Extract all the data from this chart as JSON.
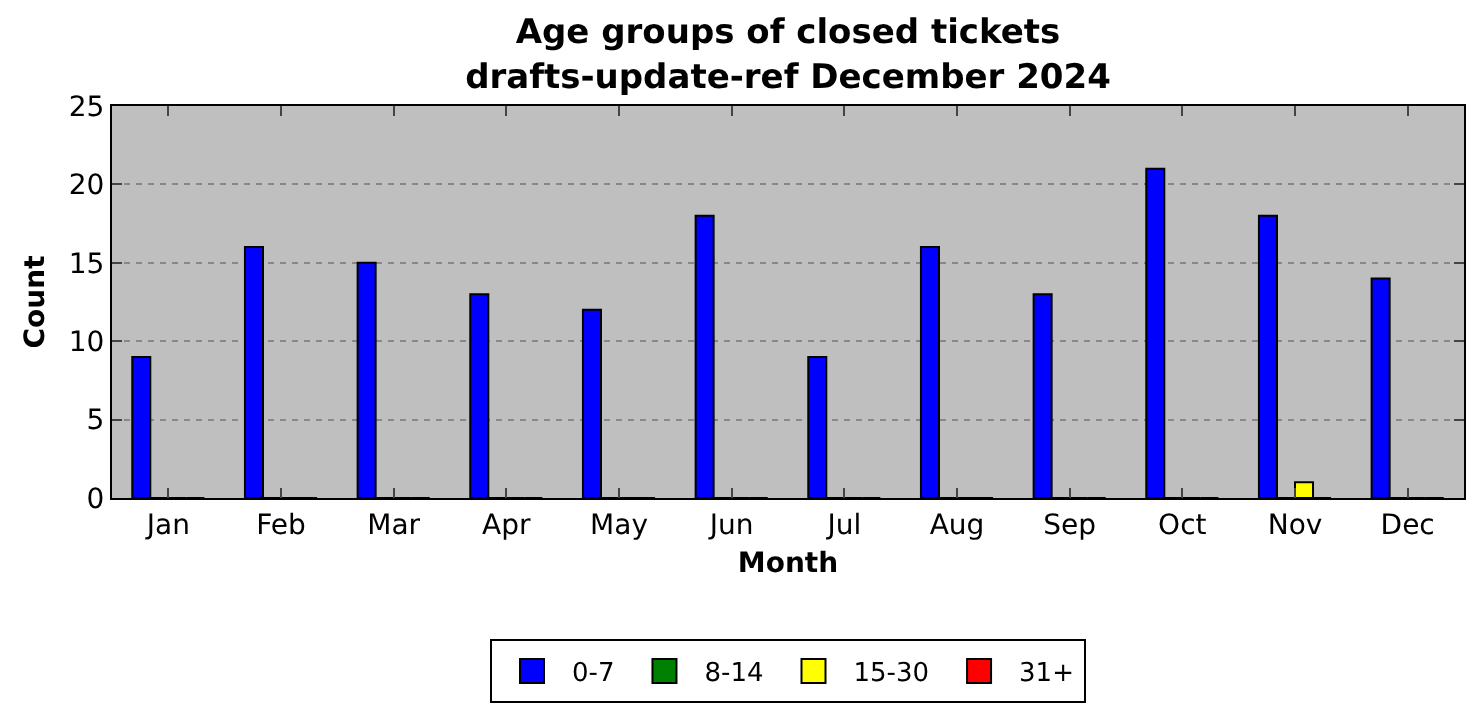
{
  "chart_data": {
    "type": "bar",
    "title": "Age groups of closed tickets\ndrafts-update-ref December 2024",
    "xlabel": "Month",
    "ylabel": "Count",
    "categories": [
      "Jan",
      "Feb",
      "Mar",
      "Apr",
      "May",
      "Jun",
      "Jul",
      "Aug",
      "Sep",
      "Oct",
      "Nov",
      "Dec"
    ],
    "series": [
      {
        "name": "0-7",
        "color": "#0000ff",
        "values": [
          9,
          16,
          15,
          13,
          12,
          18,
          9,
          16,
          13,
          21,
          18,
          14
        ]
      },
      {
        "name": "8-14",
        "color": "#008000",
        "values": [
          0,
          0,
          0,
          0,
          0,
          0,
          0,
          0,
          0,
          0,
          0,
          0
        ]
      },
      {
        "name": "15-30",
        "color": "#ffff00",
        "values": [
          0,
          0,
          0,
          0,
          0,
          0,
          0,
          0,
          0,
          0,
          1,
          0
        ]
      },
      {
        "name": "31+",
        "color": "#ff0000",
        "values": [
          0,
          0,
          0,
          0,
          0,
          0,
          0,
          0,
          0,
          0,
          0,
          0
        ]
      }
    ],
    "ylim": [
      0,
      25
    ],
    "yticks": [
      0,
      5,
      10,
      15,
      20,
      25
    ],
    "grid": "y",
    "legend": "bottom"
  }
}
